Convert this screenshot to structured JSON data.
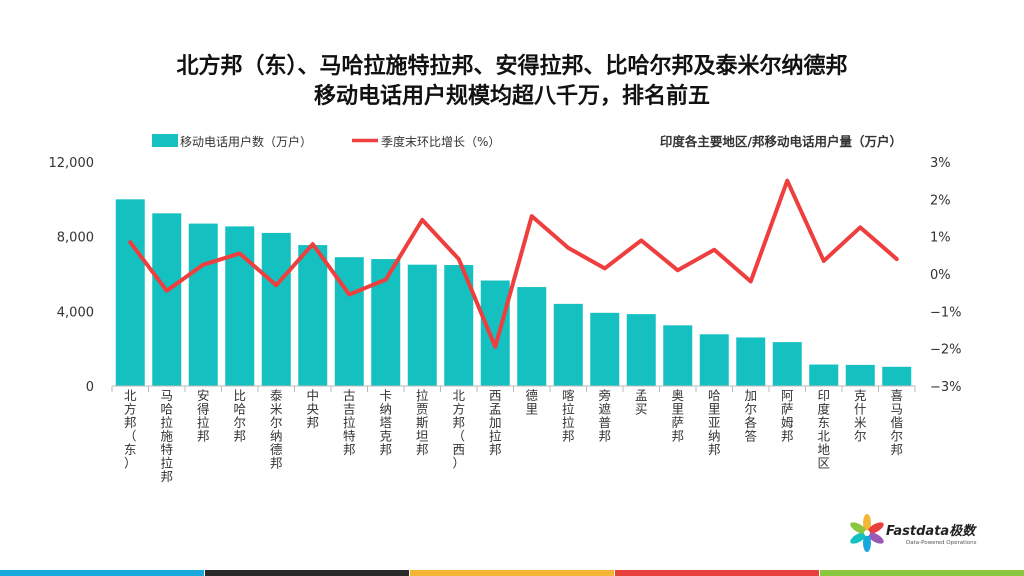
{
  "title_line1": "北方邦（东）、马哈拉施特拉邦、安得拉邦、比哈尔邦及泰米尔纳德邦",
  "title_line2": "移动电话用户规模均超八千万，排名前五",
  "colors": {
    "bar": "#14c0c0",
    "line": "#ee3e3e",
    "stripes": [
      "#17a8dc",
      "#2a2a2a",
      "#f5b534",
      "#e8413c",
      "#8cc63f"
    ]
  },
  "logo": {
    "name": "Fastdata极数",
    "tagline": "Data-Powered Operations"
  },
  "chart_data": {
    "type": "bar",
    "annotation": "印度各主要地区/邦移动电话用户量（万户）",
    "legend_position": "top-left",
    "categories": [
      "北方邦（东）",
      "马哈拉施特拉邦",
      "安得拉邦",
      "比哈尔邦",
      "泰米尔纳德邦",
      "中央邦",
      "古吉拉特邦",
      "卡纳塔克邦",
      "拉贾斯坦邦",
      "北方邦（西）",
      "西孟加拉邦",
      "德里",
      "喀拉拉邦",
      "旁遮普邦",
      "孟买",
      "奥里萨邦",
      "哈里亚纳邦",
      "加尔各答",
      "阿萨姆邦",
      "印度东北地区",
      "克什米尔",
      "喜马偕尔邦"
    ],
    "series": [
      {
        "name": "移动电话用户数（万户）",
        "type": "bar",
        "axis": "left",
        "values": [
          10000,
          9250,
          8700,
          8550,
          8200,
          7550,
          6900,
          6800,
          6500,
          6480,
          5650,
          5300,
          4400,
          3920,
          3850,
          3250,
          2770,
          2600,
          2350,
          1150,
          1130,
          1030
        ]
      },
      {
        "name": "季度末环比增长（%）",
        "type": "line",
        "axis": "right",
        "values": [
          0.85,
          -0.45,
          0.25,
          0.55,
          -0.3,
          0.8,
          -0.55,
          -0.15,
          1.45,
          0.4,
          -1.95,
          1.55,
          0.7,
          0.15,
          0.9,
          0.1,
          0.65,
          -0.2,
          2.5,
          0.35,
          1.25,
          0.4
        ]
      }
    ],
    "y_left": {
      "lim": [
        0,
        12000
      ],
      "ticks": [
        0,
        4000,
        8000,
        12000
      ],
      "tick_labels": [
        "0",
        "4,000",
        "8,000",
        "12,000"
      ]
    },
    "y_right": {
      "lim": [
        -3,
        3
      ],
      "ticks": [
        -3,
        -2,
        -1,
        0,
        1,
        2,
        3
      ],
      "tick_labels": [
        "−3%",
        "−2%",
        "−1%",
        "0%",
        "1%",
        "2%",
        "3%"
      ]
    },
    "grid": false
  }
}
